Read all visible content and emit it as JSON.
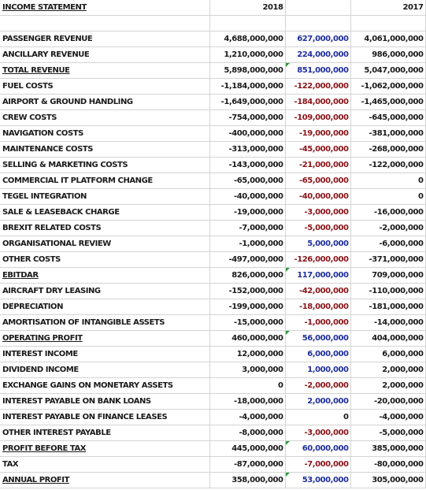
{
  "header": {
    "title": "INCOME STATEMENT",
    "col_2018": "2018",
    "col_change": "",
    "col_2017": "2017"
  },
  "colors": {
    "positive_change": "#1f2f9c",
    "negative_change": "#8a1418",
    "comment_indicator": "#2e9a3a"
  },
  "rows": [
    {
      "label": "PASSENGER REVENUE",
      "v2018": "4,688,000,000",
      "change": "627,000,000",
      "v2017": "4,061,000,000",
      "tone": "pos"
    },
    {
      "label": "ANCILLARY REVENUE",
      "v2018": "1,210,000,000",
      "change": "224,000,000",
      "v2017": "986,000,000",
      "tone": "pos"
    },
    {
      "label": "TOTAL REVENUE",
      "v2018": "5,898,000,000",
      "change": "851,000,000",
      "v2017": "5,047,000,000",
      "tone": "pos",
      "subtotal": true,
      "mark": true
    },
    {
      "label": "FUEL COSTS",
      "v2018": "-1,184,000,000",
      "change": "-122,000,000",
      "v2017": "-1,062,000,000",
      "tone": "neg"
    },
    {
      "label": "AIRPORT & GROUND HANDLING",
      "v2018": "-1,649,000,000",
      "change": "-184,000,000",
      "v2017": "-1,465,000,000",
      "tone": "neg"
    },
    {
      "label": "CREW COSTS",
      "v2018": "-754,000,000",
      "change": "-109,000,000",
      "v2017": "-645,000,000",
      "tone": "neg"
    },
    {
      "label": "NAVIGATION COSTS",
      "v2018": "-400,000,000",
      "change": "-19,000,000",
      "v2017": "-381,000,000",
      "tone": "neg"
    },
    {
      "label": "MAINTENANCE COSTS",
      "v2018": "-313,000,000",
      "change": "-45,000,000",
      "v2017": "-268,000,000",
      "tone": "neg"
    },
    {
      "label": "SELLING & MARKETING  COSTS",
      "v2018": "-143,000,000",
      "change": "-21,000,000",
      "v2017": "-122,000,000",
      "tone": "neg"
    },
    {
      "label": "COMMERCIAL IT PLATFORM CHANGE",
      "v2018": "-65,000,000",
      "change": "-65,000,000",
      "v2017": "0",
      "tone": "neg"
    },
    {
      "label": "TEGEL INTEGRATION",
      "v2018": "-40,000,000",
      "change": "-40,000,000",
      "v2017": "0",
      "tone": "neg"
    },
    {
      "label": "SALE & LEASEBACK CHARGE",
      "v2018": "-19,000,000",
      "change": "-3,000,000",
      "v2017": "-16,000,000",
      "tone": "neg"
    },
    {
      "label": "BREXIT RELATED COSTS",
      "v2018": "-7,000,000",
      "change": "-5,000,000",
      "v2017": "-2,000,000",
      "tone": "neg"
    },
    {
      "label": "ORGANISATIONAL REVIEW",
      "v2018": "-1,000,000",
      "change": "5,000,000",
      "v2017": "-6,000,000",
      "tone": "pos"
    },
    {
      "label": "OTHER COSTS",
      "v2018": "-497,000,000",
      "change": "-126,000,000",
      "v2017": "-371,000,000",
      "tone": "neg"
    },
    {
      "label": "EBITDAR",
      "v2018": "826,000,000",
      "change": "117,000,000",
      "v2017": "709,000,000",
      "tone": "pos",
      "subtotal": true,
      "mark": true
    },
    {
      "label": "AIRCRAFT DRY LEASING",
      "v2018": "-152,000,000",
      "change": "-42,000,000",
      "v2017": "-110,000,000",
      "tone": "neg"
    },
    {
      "label": "DEPRECIATION",
      "v2018": "-199,000,000",
      "change": "-18,000,000",
      "v2017": "-181,000,000",
      "tone": "neg"
    },
    {
      "label": "AMORTISATION OF INTANGIBLE ASSETS",
      "v2018": "-15,000,000",
      "change": "-1,000,000",
      "v2017": "-14,000,000",
      "tone": "neg"
    },
    {
      "label": "OPERATING PROFIT",
      "v2018": "460,000,000",
      "change": "56,000,000",
      "v2017": "404,000,000",
      "tone": "pos",
      "subtotal": true,
      "mark": true
    },
    {
      "label": "INTEREST INCOME",
      "v2018": "12,000,000",
      "change": "6,000,000",
      "v2017": "6,000,000",
      "tone": "pos"
    },
    {
      "label": "DIVIDEND INCOME",
      "v2018": "3,000,000",
      "change": "1,000,000",
      "v2017": "2,000,000",
      "tone": "pos"
    },
    {
      "label": "EXCHANGE GAINS ON MONETARY ASSETS",
      "v2018": "0",
      "change": "-2,000,000",
      "v2017": "2,000,000",
      "tone": "neg"
    },
    {
      "label": "INTEREST PAYABLE ON BANK LOANS",
      "v2018": "-18,000,000",
      "change": "2,000,000",
      "v2017": "-20,000,000",
      "tone": "pos"
    },
    {
      "label": "INTEREST PAYABLE ON FINANCE LEASES",
      "v2018": "-4,000,000",
      "change": "0",
      "v2017": "-4,000,000",
      "tone": "plain"
    },
    {
      "label": "OTHER INTEREST PAYABLE",
      "v2018": "-8,000,000",
      "change": "-3,000,000",
      "v2017": "-5,000,000",
      "tone": "neg"
    },
    {
      "label": "PROFIT BEFORE TAX",
      "v2018": "445,000,000",
      "change": "60,000,000",
      "v2017": "385,000,000",
      "tone": "pos",
      "subtotal": true,
      "mark": true
    },
    {
      "label": "TAX",
      "v2018": "-87,000,000",
      "change": "-7,000,000",
      "v2017": "-80,000,000",
      "tone": "neg"
    },
    {
      "label": "ANNUAL PROFIT",
      "v2018": "358,000,000",
      "change": "53,000,000",
      "v2017": "305,000,000",
      "tone": "pos",
      "subtotal": true,
      "mark": true
    }
  ]
}
